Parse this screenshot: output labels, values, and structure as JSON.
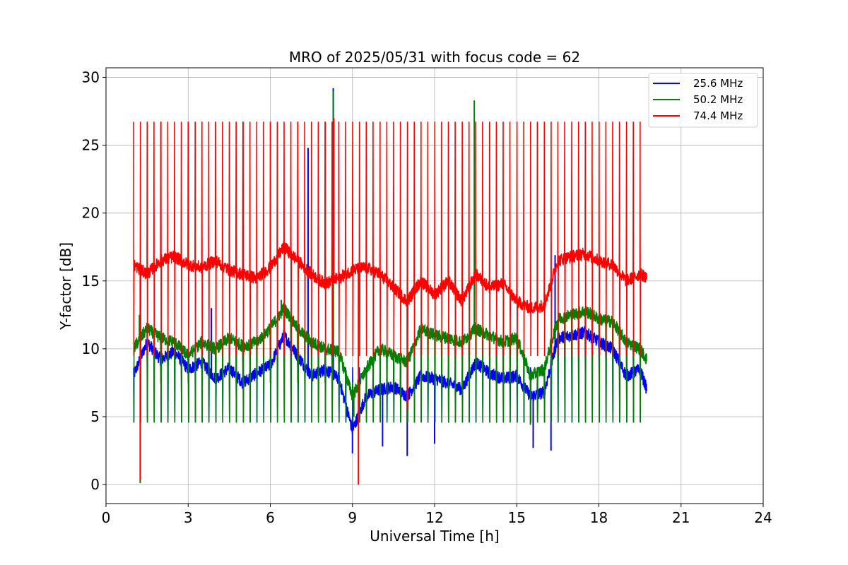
{
  "chart_data": {
    "type": "line",
    "title": "MRO of 2025/05/31 with focus code = 62",
    "xlabel": "Universal Time [h]",
    "ylabel": "Y-factor [dB]",
    "xlim": [
      0,
      24
    ],
    "ylim": [
      -1.4,
      30.7
    ],
    "xticks": [
      0,
      3,
      6,
      9,
      12,
      15,
      18,
      21,
      24
    ],
    "yticks": [
      0,
      5,
      10,
      15,
      20,
      25,
      30
    ],
    "grid": true,
    "legend_position": "top-right",
    "cal_period_h": 0.25,
    "series": [
      {
        "name": "25.6 MHz",
        "color": "#0000ff",
        "cal_peak": 8.6,
        "cal_dip": 4.6,
        "x": [
          1.0,
          1.5,
          2.0,
          2.5,
          3.0,
          3.5,
          4.0,
          4.5,
          5.0,
          5.5,
          6.0,
          6.5,
          7.0,
          7.5,
          8.0,
          8.5,
          9.0,
          9.5,
          10.0,
          10.5,
          11.0,
          11.5,
          12.0,
          12.5,
          13.0,
          13.5,
          14.0,
          14.5,
          15.0,
          15.5,
          16.0,
          16.5,
          17.0,
          17.5,
          18.0,
          18.5,
          19.0,
          19.5,
          19.75
        ],
        "y": [
          8.0,
          10.5,
          9.2,
          9.8,
          8.5,
          9.0,
          7.8,
          8.6,
          7.5,
          8.2,
          8.8,
          11.0,
          9.5,
          8.0,
          8.5,
          7.8,
          4.0,
          6.5,
          7.0,
          7.2,
          6.5,
          8.0,
          7.8,
          7.5,
          7.0,
          9.0,
          8.2,
          7.8,
          8.0,
          6.5,
          6.8,
          10.8,
          11.0,
          11.2,
          10.5,
          10.0,
          8.0,
          8.5,
          7.0
        ],
        "spikes": [
          [
            7.38,
            24.8
          ],
          [
            8.3,
            29.2
          ],
          [
            3.85,
            13.0
          ],
          [
            16.4,
            16.9
          ]
        ],
        "dips": [
          [
            10.1,
            2.8
          ],
          [
            11.0,
            2.1
          ],
          [
            12.0,
            3.0
          ],
          [
            15.6,
            2.7
          ],
          [
            16.25,
            2.5
          ],
          [
            9.0,
            2.3
          ]
        ]
      },
      {
        "name": "50.2 MHz",
        "color": "#008000",
        "cal_peak": 7.5,
        "cal_dip": 4.6,
        "x": [
          1.0,
          1.5,
          2.0,
          2.5,
          3.0,
          3.5,
          4.0,
          4.5,
          5.0,
          5.5,
          6.0,
          6.5,
          7.0,
          7.5,
          8.0,
          8.5,
          9.0,
          9.5,
          10.0,
          10.5,
          11.0,
          11.5,
          12.0,
          12.5,
          13.0,
          13.5,
          14.0,
          14.5,
          15.0,
          15.5,
          16.0,
          16.5,
          17.0,
          17.5,
          18.0,
          18.5,
          19.0,
          19.5,
          19.75
        ],
        "y": [
          10.0,
          11.5,
          10.8,
          10.5,
          9.5,
          10.5,
          10.0,
          10.8,
          10.2,
          10.5,
          11.5,
          13.0,
          11.5,
          10.5,
          10.0,
          9.8,
          6.5,
          8.5,
          10.0,
          9.5,
          9.0,
          11.5,
          11.0,
          10.8,
          10.5,
          11.5,
          11.0,
          10.5,
          10.8,
          8.0,
          8.5,
          12.2,
          12.5,
          12.8,
          12.2,
          12.0,
          10.5,
          10.0,
          9.2
        ],
        "spikes": [
          [
            8.3,
            29.0
          ],
          [
            13.45,
            28.3
          ],
          [
            1.22,
            12.5
          ],
          [
            6.4,
            13.6
          ]
        ],
        "dips": [
          [
            1.25,
            0.1
          ],
          [
            9.05,
            5.0
          ],
          [
            15.5,
            4.4
          ]
        ]
      },
      {
        "name": "74.4 MHz",
        "color": "#ff0000",
        "cal_peak": 26.7,
        "cal_dip": 9.5,
        "x": [
          1.0,
          1.5,
          2.0,
          2.5,
          3.0,
          3.5,
          4.0,
          4.5,
          5.0,
          5.5,
          6.0,
          6.5,
          7.0,
          7.5,
          8.0,
          8.5,
          9.0,
          9.5,
          10.0,
          10.5,
          11.0,
          11.5,
          12.0,
          12.5,
          13.0,
          13.5,
          14.0,
          14.5,
          15.0,
          15.5,
          16.0,
          16.5,
          17.0,
          17.5,
          18.0,
          18.5,
          19.0,
          19.5,
          19.75
        ],
        "y": [
          16.2,
          15.5,
          16.5,
          16.8,
          16.2,
          16.0,
          16.5,
          15.8,
          15.5,
          15.2,
          16.0,
          17.5,
          16.5,
          15.5,
          14.8,
          15.2,
          15.8,
          16.0,
          15.5,
          14.5,
          13.5,
          15.0,
          14.0,
          15.0,
          13.5,
          15.5,
          14.5,
          14.8,
          13.5,
          13.0,
          13.2,
          16.5,
          16.8,
          17.0,
          16.5,
          16.2,
          15.0,
          15.5,
          15.3
        ],
        "spikes": [
          [
            8.32,
            27.0
          ]
        ],
        "dips": [
          [
            1.25,
            0.3
          ],
          [
            9.22,
            0.0
          ],
          [
            11.0,
            5.5
          ]
        ]
      }
    ]
  }
}
